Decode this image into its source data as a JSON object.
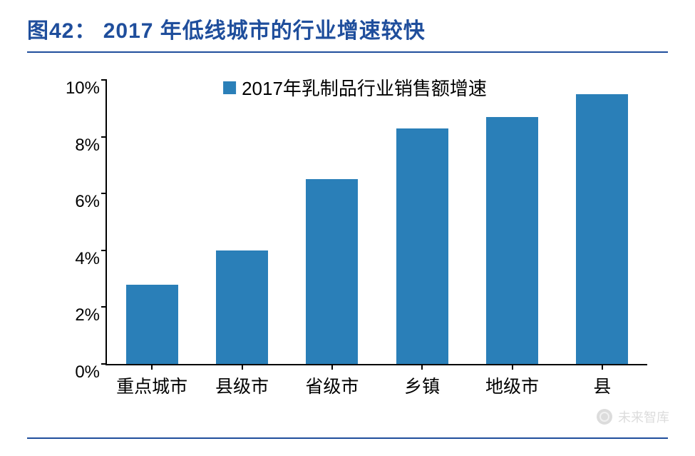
{
  "title": "图42： 2017 年低线城市的行业增速较快",
  "chart": {
    "type": "bar",
    "legend_label": "2017年乳制品行业销售额增速",
    "categories": [
      "重点城市",
      "县级市",
      "省级市",
      "乡镇",
      "地级市",
      "县"
    ],
    "values": [
      2.8,
      4.0,
      6.5,
      8.3,
      8.7,
      9.5
    ],
    "ylim": [
      0,
      10
    ],
    "ytick_step": 2,
    "ytick_labels": [
      "0%",
      "2%",
      "4%",
      "6%",
      "8%",
      "10%"
    ],
    "bar_color": "#2a7fb8",
    "axis_color": "#000000",
    "title_color": "#1f4e9c",
    "background_color": "#ffffff",
    "bar_width_ratio": 0.58,
    "title_fontsize": 30,
    "axis_label_fontsize": 25,
    "legend_fontsize": 26
  },
  "watermark": {
    "text": "未来智库"
  }
}
